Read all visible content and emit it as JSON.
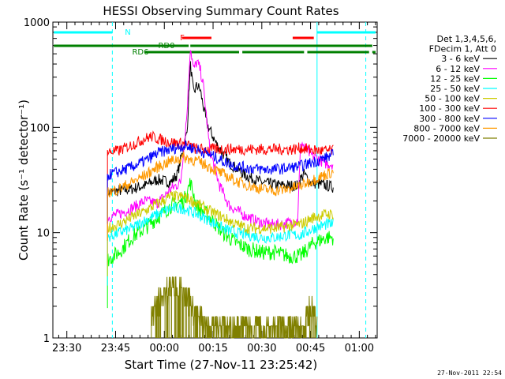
{
  "chart_data": {
    "type": "line",
    "title": "HESSI Observing Summary Count Rates",
    "xlabel": "Start Time (27-Nov-11 23:25:42)",
    "ylabel": "Count Rate (s⁻¹ detector⁻¹)",
    "y_scale": "log",
    "ylim": [
      1,
      1000
    ],
    "xlim_minutes": [
      -4.3,
      95.5
    ],
    "x_tick_labels": [
      "23:30",
      "23:45",
      "00:00",
      "00:15",
      "00:30",
      "00:45",
      "01:00"
    ],
    "x_tick_minutes": [
      0,
      15,
      30,
      45,
      60,
      75,
      90
    ],
    "y_tick_labels": [
      "1",
      "10",
      "100",
      "1000"
    ],
    "y_tick_values": [
      1,
      10,
      100,
      1000
    ],
    "grid": false,
    "legend_position": "right",
    "legend_header": [
      "Det 1,3,4,5,6,",
      "FDecim 1, Att 0"
    ],
    "series": [
      {
        "name": "3 - 6 keV",
        "color": "#000000",
        "points": [
          [
            12.5,
            24
          ],
          [
            16,
            25
          ],
          [
            20,
            26
          ],
          [
            24,
            28
          ],
          [
            28,
            32
          ],
          [
            32,
            30
          ],
          [
            34,
            36
          ],
          [
            37,
            90
          ],
          [
            38,
            400
          ],
          [
            39,
            210
          ],
          [
            40,
            250
          ],
          [
            41,
            230
          ],
          [
            43,
            110
          ],
          [
            46,
            70
          ],
          [
            50,
            46
          ],
          [
            55,
            35
          ],
          [
            60,
            30
          ],
          [
            66,
            28
          ],
          [
            71,
            28
          ],
          [
            72,
            33
          ],
          [
            73,
            36
          ],
          [
            75,
            30
          ],
          [
            80,
            28
          ],
          [
            82,
            27
          ]
        ]
      },
      {
        "name": "6 - 12 keV",
        "color": "#ff00ff",
        "points": [
          [
            12.5,
            14
          ],
          [
            16,
            15
          ],
          [
            20,
            17
          ],
          [
            24,
            20
          ],
          [
            28,
            19
          ],
          [
            32,
            26
          ],
          [
            35,
            30
          ],
          [
            37,
            140
          ],
          [
            38,
            600
          ],
          [
            39,
            350
          ],
          [
            40,
            420
          ],
          [
            41,
            360
          ],
          [
            42,
            250
          ],
          [
            44,
            60
          ],
          [
            47,
            28
          ],
          [
            50,
            18
          ],
          [
            54,
            15
          ],
          [
            58,
            13
          ],
          [
            62,
            12
          ],
          [
            66,
            12
          ],
          [
            71,
            13
          ],
          [
            72,
            75
          ],
          [
            73,
            65
          ],
          [
            75,
            55
          ],
          [
            80,
            45
          ],
          [
            82,
            45
          ]
        ]
      },
      {
        "name": "12 - 25 keV",
        "color": "#00ff00",
        "points": [
          [
            12.5,
            5.5
          ],
          [
            16,
            6.5
          ],
          [
            20,
            9
          ],
          [
            24,
            11
          ],
          [
            28,
            14
          ],
          [
            32,
            18
          ],
          [
            36,
            20
          ],
          [
            38,
            30
          ],
          [
            40,
            18
          ],
          [
            44,
            14
          ],
          [
            48,
            10
          ],
          [
            52,
            8
          ],
          [
            56,
            7
          ],
          [
            60,
            6.5
          ],
          [
            64,
            6.5
          ],
          [
            68,
            6
          ],
          [
            72,
            6
          ],
          [
            76,
            8
          ],
          [
            80,
            9
          ],
          [
            82,
            9
          ]
        ]
      },
      {
        "name": "25 - 50 keV",
        "color": "#00ffff",
        "points": [
          [
            12.5,
            9
          ],
          [
            16,
            10
          ],
          [
            20,
            11
          ],
          [
            24,
            13
          ],
          [
            28,
            15
          ],
          [
            32,
            17
          ],
          [
            36,
            17
          ],
          [
            40,
            15
          ],
          [
            44,
            13
          ],
          [
            48,
            11
          ],
          [
            52,
            10
          ],
          [
            56,
            9.5
          ],
          [
            60,
            9
          ],
          [
            64,
            9
          ],
          [
            68,
            9.5
          ],
          [
            72,
            9.5
          ],
          [
            76,
            11
          ],
          [
            80,
            12
          ],
          [
            82,
            12
          ]
        ]
      },
      {
        "name": "50 - 100 keV",
        "color": "#cccc00",
        "points": [
          [
            12.5,
            11
          ],
          [
            16,
            12
          ],
          [
            20,
            14
          ],
          [
            24,
            16
          ],
          [
            28,
            19
          ],
          [
            32,
            22
          ],
          [
            36,
            22
          ],
          [
            40,
            19
          ],
          [
            44,
            16
          ],
          [
            48,
            14
          ],
          [
            52,
            12
          ],
          [
            56,
            11
          ],
          [
            60,
            11
          ],
          [
            64,
            11
          ],
          [
            68,
            11.5
          ],
          [
            72,
            12
          ],
          [
            76,
            14
          ],
          [
            80,
            15
          ],
          [
            82,
            15
          ]
        ]
      },
      {
        "name": "100 - 300 keV",
        "color": "#ff0000",
        "points": [
          [
            12.5,
            58
          ],
          [
            16,
            60
          ],
          [
            20,
            68
          ],
          [
            24,
            78
          ],
          [
            26,
            82
          ],
          [
            28,
            78
          ],
          [
            32,
            72
          ],
          [
            36,
            70
          ],
          [
            40,
            62
          ],
          [
            44,
            62
          ],
          [
            48,
            62
          ],
          [
            52,
            62
          ],
          [
            56,
            62
          ],
          [
            60,
            62
          ],
          [
            64,
            62
          ],
          [
            68,
            62
          ],
          [
            70,
            62
          ],
          [
            72,
            64
          ],
          [
            74,
            62
          ],
          [
            78,
            60
          ],
          [
            82,
            60
          ]
        ]
      },
      {
        "name": "300 - 800 keV",
        "color": "#0000ff",
        "points": [
          [
            12.5,
            35
          ],
          [
            16,
            38
          ],
          [
            20,
            42
          ],
          [
            24,
            48
          ],
          [
            28,
            57
          ],
          [
            32,
            62
          ],
          [
            36,
            67
          ],
          [
            40,
            62
          ],
          [
            44,
            55
          ],
          [
            48,
            48
          ],
          [
            52,
            43
          ],
          [
            56,
            41
          ],
          [
            60,
            40
          ],
          [
            64,
            40
          ],
          [
            68,
            41
          ],
          [
            72,
            43
          ],
          [
            76,
            47
          ],
          [
            80,
            52
          ],
          [
            82,
            55
          ]
        ]
      },
      {
        "name": "800 - 7000 keV",
        "color": "#ff9900",
        "points": [
          [
            12.5,
            24
          ],
          [
            16,
            26
          ],
          [
            20,
            30
          ],
          [
            24,
            35
          ],
          [
            28,
            42
          ],
          [
            32,
            48
          ],
          [
            36,
            52
          ],
          [
            40,
            48
          ],
          [
            44,
            42
          ],
          [
            48,
            36
          ],
          [
            52,
            31
          ],
          [
            56,
            28
          ],
          [
            60,
            26
          ],
          [
            64,
            25
          ],
          [
            68,
            26
          ],
          [
            72,
            28
          ],
          [
            76,
            32
          ],
          [
            80,
            36
          ],
          [
            82,
            38
          ]
        ]
      },
      {
        "name": "7000 - 20000 keV",
        "color": "#808000",
        "points": [
          [
            26,
            1.6
          ],
          [
            27,
            1.8
          ],
          [
            29,
            2.6
          ],
          [
            31,
            2.9
          ],
          [
            33,
            3.4
          ],
          [
            35,
            2.8
          ],
          [
            37,
            2.4
          ],
          [
            39,
            2.0
          ],
          [
            41,
            1.6
          ],
          [
            43,
            1.3
          ],
          [
            73,
            1.3
          ],
          [
            74,
            1.6
          ],
          [
            75,
            2.0
          ],
          [
            76,
            1.8
          ],
          [
            77,
            1.3
          ]
        ]
      }
    ],
    "status_bars": [
      {
        "label": "N",
        "color": "#00ffff",
        "segments": [
          [
            -4,
            14
          ],
          [
            77,
            95
          ]
        ]
      },
      {
        "label": "F",
        "color": "#ff0000",
        "segments": [
          [
            35.5,
            44.5
          ],
          [
            69.5,
            76
          ]
        ]
      },
      {
        "label": "RD0",
        "color": "#008000",
        "segments": [
          [
            -4,
            37.5
          ],
          [
            38,
            94
          ]
        ]
      },
      {
        "label": "RD6",
        "color": "#008000",
        "segments": [
          [
            24,
            53
          ],
          [
            54,
            73
          ],
          [
            74,
            93
          ],
          [
            94,
            95
          ]
        ]
      }
    ],
    "vertical_markers": [
      {
        "type": "dashed",
        "color": "#00ffff",
        "x_minutes": [
          14,
          92
        ]
      },
      {
        "type": "solid",
        "color": "#00ffff",
        "x_minutes": [
          77
        ]
      }
    ],
    "timestamp": "27-Nov-2011 22:54"
  }
}
